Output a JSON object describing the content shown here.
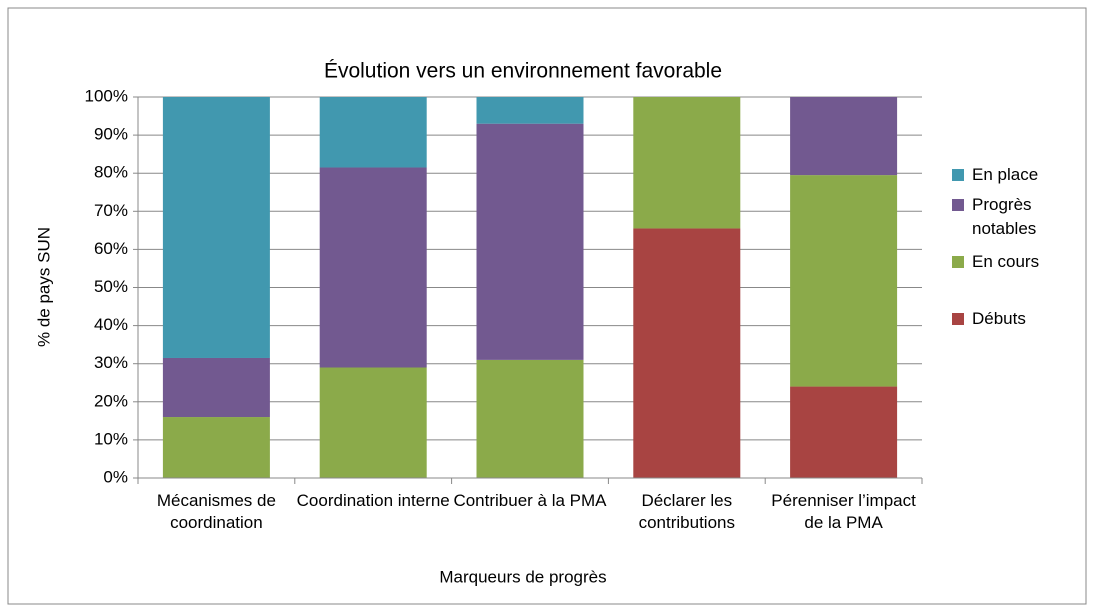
{
  "chart_data": {
    "type": "stacked_bar",
    "title": "Évolution vers un environnement favorable",
    "y_label": "% de pays SUN",
    "x_label": "Marqueurs de progrès",
    "categories": [
      "Mécanismes de coordination",
      "Coordination interne",
      "Contribuer à la PMA",
      "Déclarer les contributions",
      "Pérenniser l’impact de la PMA"
    ],
    "series": [
      {
        "name": "Débuts",
        "color": "#a84442",
        "values": [
          0,
          0,
          0,
          65.5,
          24
        ]
      },
      {
        "name": "En cours",
        "color": "#8baa4a",
        "values": [
          16,
          29,
          31,
          34.5,
          55.5
        ]
      },
      {
        "name": "Progrès notables",
        "color": "#725990",
        "values": [
          15.5,
          52.5,
          62,
          0,
          20.5
        ]
      },
      {
        "name": "En place",
        "color": "#4198af",
        "values": [
          68.5,
          18.5,
          7,
          0,
          0
        ]
      }
    ],
    "ylim": [
      0,
      100
    ],
    "yticks": [
      {
        "value": 0,
        "label": "0%"
      },
      {
        "value": 10,
        "label": "10%"
      },
      {
        "value": 20,
        "label": "20%"
      },
      {
        "value": 30,
        "label": "30%"
      },
      {
        "value": 40,
        "label": "40%"
      },
      {
        "value": 50,
        "label": "50%"
      },
      {
        "value": 60,
        "label": "60%"
      },
      {
        "value": 70,
        "label": "70%"
      },
      {
        "value": 80,
        "label": "80%"
      },
      {
        "value": 90,
        "label": "90%"
      },
      {
        "value": 100,
        "label": "100%"
      }
    ],
    "grid": true,
    "legend": "right"
  }
}
